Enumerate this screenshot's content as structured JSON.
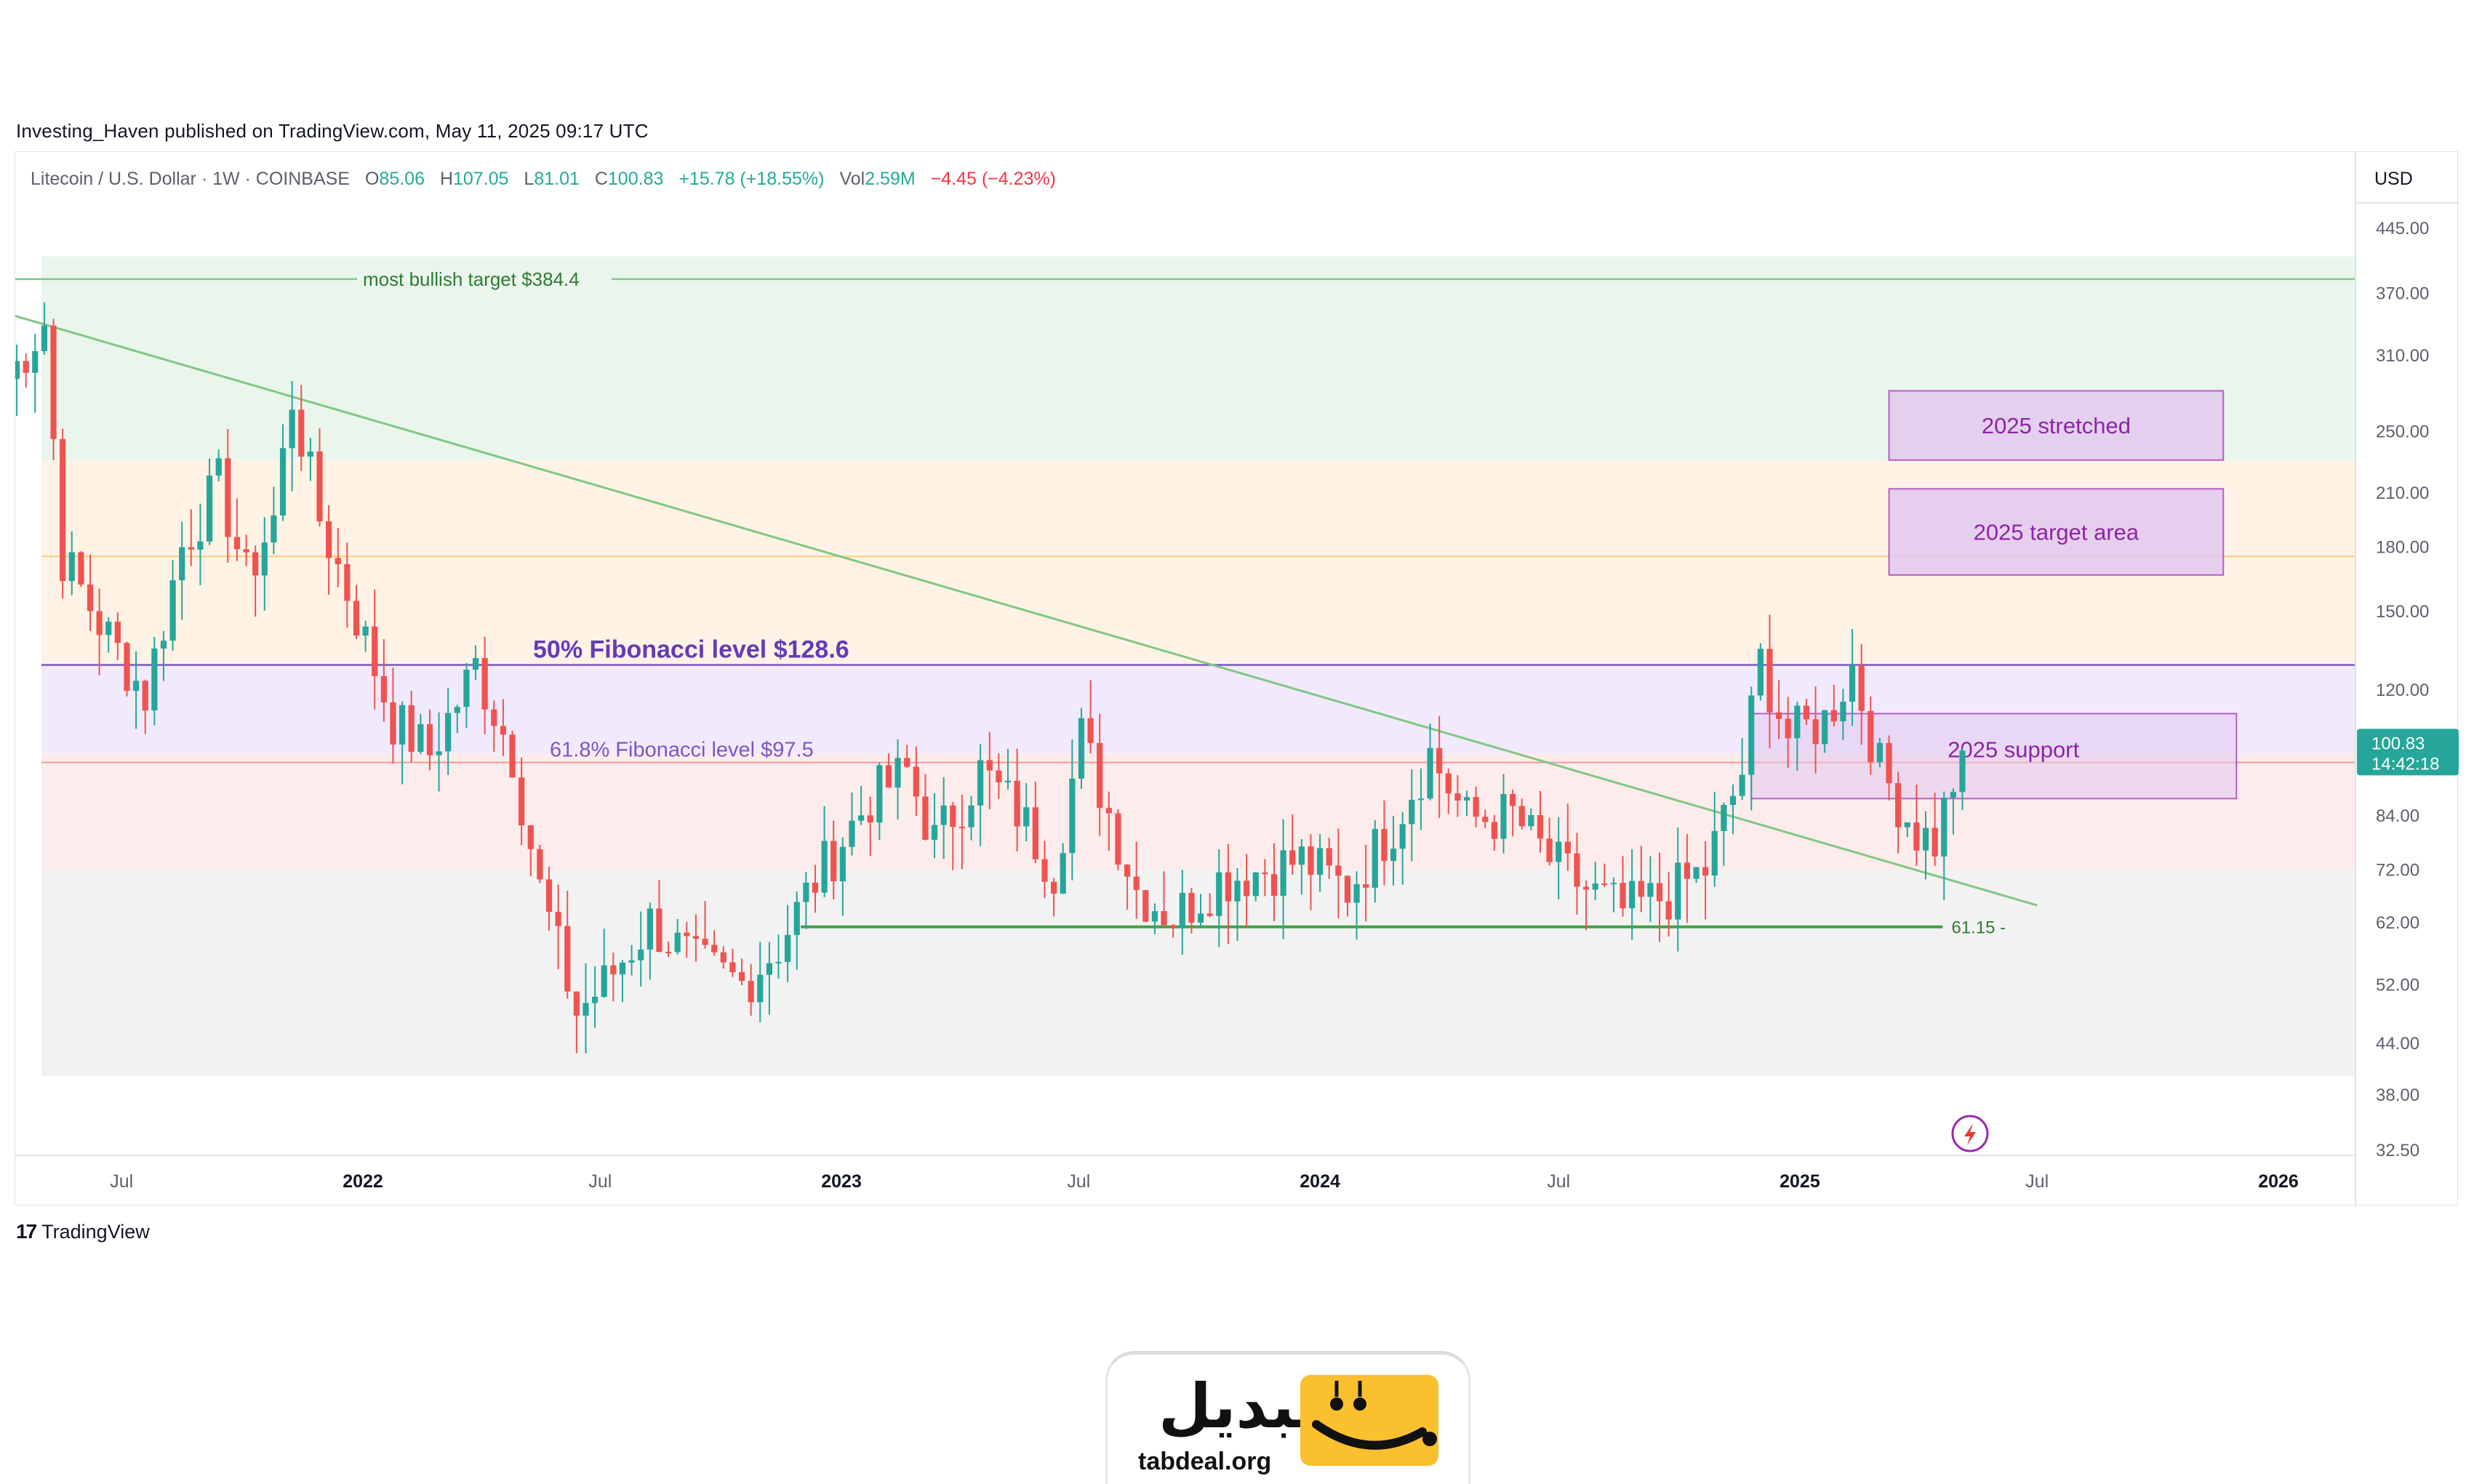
{
  "header": {
    "published": "Investing_Haven published on TradingView.com, May 11, 2025 09:17 UTC"
  },
  "symbol": {
    "name": "Litecoin / U.S. Dollar · 1W · COINBASE",
    "open_label": "O",
    "open": "85.06",
    "high_label": "H",
    "high": "107.05",
    "low_label": "L",
    "low": "81.01",
    "close_label": "C",
    "close": "100.83",
    "change": "+15.78 (+18.55%)",
    "vol_label": "Vol",
    "vol": "2.59M",
    "vol_change": "−4.45 (−4.23%)"
  },
  "price_axis": {
    "currency": "USD",
    "ticks": [
      "445.00",
      "370.00",
      "310.00",
      "250.00",
      "210.00",
      "180.00",
      "150.00",
      "120.00",
      "100.83",
      "84.00",
      "72.00",
      "62.00",
      "52.00",
      "44.00",
      "38.00",
      "32.50"
    ],
    "last_price": "100.83",
    "countdown": "14:42:18"
  },
  "time_axis": {
    "ticks": [
      "Jul",
      "2022",
      "Jul",
      "2023",
      "Jul",
      "2024",
      "Jul",
      "2025",
      "Jul",
      "2026"
    ]
  },
  "footer": {
    "brand": "TradingView"
  },
  "logo": {
    "word": "تبدیل",
    "domain": "tabdeal.org"
  },
  "colors": {
    "up": "#26a69a",
    "down": "#ef5350",
    "zone_green": "#eaf6ec",
    "zone_orange": "#fff3e6",
    "zone_purple": "#f1eafc",
    "zone_pink": "#fdecec",
    "zone_grey": "#f2f2f2",
    "box_fill": "#e2c8ef",
    "box_stroke": "#9c27b0",
    "fib50": "#7e57c2",
    "trendline": "#81c784",
    "support": "#43a047",
    "brand_yellow": "#fbc02d"
  },
  "chart_data": {
    "type": "candlestick",
    "title": "Litecoin / U.S. Dollar · 1W · COINBASE",
    "scale": "log",
    "ylim": [
      32.5,
      445
    ],
    "xlim": [
      "2021-04-01",
      "2026-03-01"
    ],
    "grid": false,
    "last_close": 100.83,
    "zones": [
      {
        "from": 230,
        "to": 410,
        "color": "green"
      },
      {
        "from": 128.6,
        "to": 230,
        "color": "orange"
      },
      {
        "from": 100,
        "to": 128.6,
        "color": "purple"
      },
      {
        "from": 72,
        "to": 100,
        "color": "pink"
      },
      {
        "from": 40,
        "to": 72,
        "color": "grey"
      }
    ],
    "horizontal_levels": [
      {
        "label": "most bullish target $384.4",
        "value": 384.4
      },
      {
        "label": "50% Fibonacci level $128.6",
        "value": 128.6
      },
      {
        "label": "61.8% Fibonacci level $97.5",
        "value": 97.5
      },
      {
        "label": "",
        "value": 175
      },
      {
        "label": "61.15",
        "value": 61.15,
        "from": "2022-12-01",
        "to": "2025-04-20"
      }
    ],
    "trendline": {
      "from": {
        "x": "2021-04-01",
        "y": 350
      },
      "to": {
        "x": "2025-07-01",
        "y": 65
      }
    },
    "boxes": [
      {
        "label": "2025 stretched",
        "y_from": 230,
        "y_to": 280,
        "x_from": "2025-03-10",
        "x_to": "2025-11-20"
      },
      {
        "label": "2025 target area",
        "y_from": 166,
        "y_to": 212,
        "x_from": "2025-03-10",
        "x_to": "2025-11-20"
      },
      {
        "label": "2025 support",
        "y_from": 88,
        "y_to": 112,
        "x_from": "2024-11-25",
        "x_to": "2025-11-30"
      }
    ],
    "weekly_close": [
      {
        "date": "2021-04-05",
        "close": 290
      },
      {
        "date": "2021-05-03",
        "close": 340
      },
      {
        "date": "2021-05-17",
        "close": 175
      },
      {
        "date": "2021-06-14",
        "close": 145
      },
      {
        "date": "2021-07-19",
        "close": 118
      },
      {
        "date": "2021-08-16",
        "close": 180
      },
      {
        "date": "2021-09-13",
        "close": 215
      },
      {
        "date": "2021-10-04",
        "close": 165
      },
      {
        "date": "2021-10-25",
        "close": 195
      },
      {
        "date": "2021-11-08",
        "close": 275
      },
      {
        "date": "2021-11-29",
        "close": 195
      },
      {
        "date": "2021-12-27",
        "close": 148
      },
      {
        "date": "2022-01-24",
        "close": 110
      },
      {
        "date": "2022-02-21",
        "close": 100
      },
      {
        "date": "2022-03-28",
        "close": 128
      },
      {
        "date": "2022-04-25",
        "close": 100
      },
      {
        "date": "2022-05-16",
        "close": 68
      },
      {
        "date": "2022-06-13",
        "close": 48
      },
      {
        "date": "2022-07-04",
        "close": 52
      },
      {
        "date": "2022-08-08",
        "close": 62
      },
      {
        "date": "2022-09-12",
        "close": 55
      },
      {
        "date": "2022-10-17",
        "close": 52
      },
      {
        "date": "2022-11-14",
        "close": 58
      },
      {
        "date": "2022-12-12",
        "close": 70
      },
      {
        "date": "2023-01-23",
        "close": 88
      },
      {
        "date": "2023-02-20",
        "close": 95
      },
      {
        "date": "2023-03-13",
        "close": 78
      },
      {
        "date": "2023-04-17",
        "close": 95
      },
      {
        "date": "2023-05-15",
        "close": 85
      },
      {
        "date": "2023-06-12",
        "close": 72
      },
      {
        "date": "2023-07-03",
        "close": 105
      },
      {
        "date": "2023-08-14",
        "close": 68
      },
      {
        "date": "2023-09-11",
        "close": 63
      },
      {
        "date": "2023-10-16",
        "close": 70
      },
      {
        "date": "2023-11-20",
        "close": 72
      },
      {
        "date": "2023-12-18",
        "close": 74
      },
      {
        "date": "2024-01-22",
        "close": 68
      },
      {
        "date": "2024-02-26",
        "close": 82
      },
      {
        "date": "2024-03-25",
        "close": 100
      },
      {
        "date": "2024-04-22",
        "close": 83
      },
      {
        "date": "2024-05-27",
        "close": 84
      },
      {
        "date": "2024-06-24",
        "close": 74
      },
      {
        "date": "2024-07-22",
        "close": 68
      },
      {
        "date": "2024-08-19",
        "close": 64
      },
      {
        "date": "2024-09-23",
        "close": 67
      },
      {
        "date": "2024-10-21",
        "close": 72
      },
      {
        "date": "2024-11-18",
        "close": 95
      },
      {
        "date": "2024-12-02",
        "close": 130
      },
      {
        "date": "2024-12-23",
        "close": 105
      },
      {
        "date": "2025-01-20",
        "close": 110
      },
      {
        "date": "2025-02-10",
        "close": 128
      },
      {
        "date": "2025-03-03",
        "close": 96
      },
      {
        "date": "2025-03-31",
        "close": 80
      },
      {
        "date": "2025-04-14",
        "close": 78
      },
      {
        "date": "2025-05-05",
        "close": 100.83
      }
    ]
  }
}
